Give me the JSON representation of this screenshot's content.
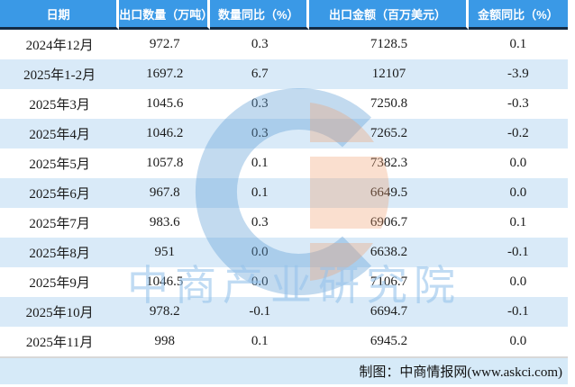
{
  "chart_data": {
    "type": "table",
    "title": "",
    "columns": [
      "日期",
      "出口数量（万吨）",
      "数量同比（%）",
      "出口金额（百万美元）",
      "金额同比（%）"
    ],
    "rows": [
      [
        "2024年12月",
        "972.7",
        "0.3",
        "7128.5",
        "0.1"
      ],
      [
        "2025年1-2月",
        "1697.2",
        "6.7",
        "12107",
        "-3.9"
      ],
      [
        "2025年3月",
        "1045.6",
        "0.3",
        "7250.8",
        "-0.3"
      ],
      [
        "2025年4月",
        "1046.2",
        "0.3",
        "7265.2",
        "-0.2"
      ],
      [
        "2025年5月",
        "1057.8",
        "0.1",
        "7382.3",
        "0.0"
      ],
      [
        "2025年6月",
        "967.8",
        "0.1",
        "6649.5",
        "0.0"
      ],
      [
        "2025年7月",
        "983.6",
        "0.3",
        "6906.7",
        "0.1"
      ],
      [
        "2025年8月",
        "951",
        "0.0",
        "6638.2",
        "-0.1"
      ],
      [
        "2025年9月",
        "1046.5",
        "0.0",
        "7106.7",
        "0.0"
      ],
      [
        "2025年10月",
        "978.2",
        "-0.1",
        "6694.7",
        "-0.1"
      ],
      [
        "2025年11月",
        "998",
        "0.1",
        "6945.2",
        "0.0"
      ]
    ],
    "layout_hints": {
      "striped": true,
      "stripe_rows": "even-index-from-second",
      "header_position": "top"
    }
  },
  "footer": {
    "credit": "制图：中商情报网(www.askci.com)"
  },
  "watermark": {
    "text": "中商产业研究院",
    "logo": "askci-logo"
  },
  "colors": {
    "header_bg": "#3A99E6",
    "header_text": "#FFFFFF",
    "header_border": "#132B44",
    "row_alt_bg": "#D9EAF8",
    "footer_bg": "#D6EAF8",
    "body_text": "#1A1A1A",
    "watermark_blue": "#A9CBE8",
    "watermark_orange": "#F5CDB4"
  }
}
